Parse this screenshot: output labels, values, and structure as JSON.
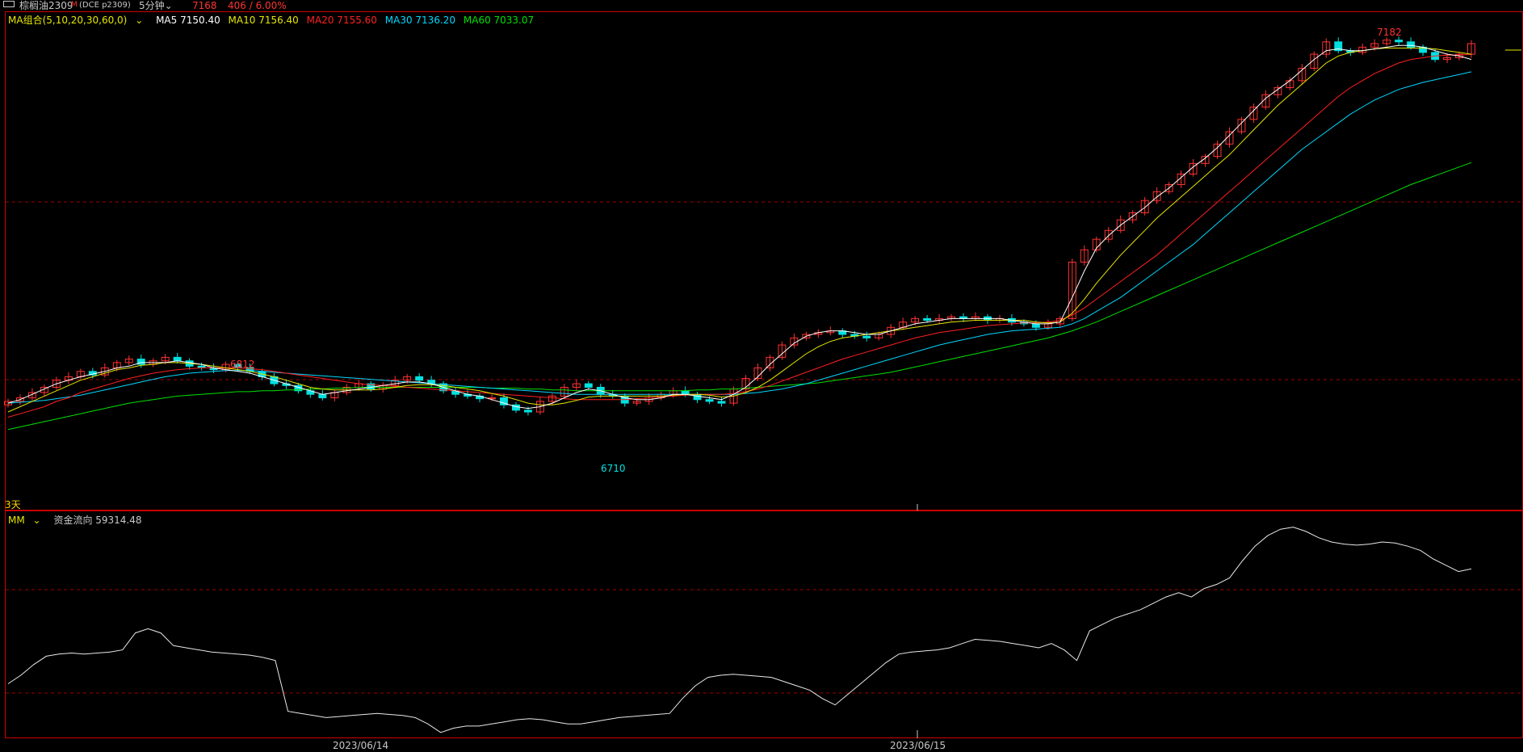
{
  "header": {
    "icon": "window-icon",
    "name": "棕榈油2309",
    "flag": "M",
    "code": "(DCE p2309)",
    "period": "5分钟",
    "price": "7168",
    "change": "406 / 6.00%",
    "colors": {
      "up": "#ff3232",
      "down": "#00e0e0",
      "text": "#c8c8c8"
    }
  },
  "ma_legend": {
    "group": "MA组合(5,10,20,30,60,0)",
    "ma5": "MA5 7150.40",
    "ma10": "MA10 7156.40",
    "ma20": "MA20 7155.60",
    "ma30": "MA30 7136.20",
    "ma60": "MA60 7033.07",
    "colors": {
      "ma5": "#ffffff",
      "ma10": "#e6e600",
      "ma20": "#ff2020",
      "ma30": "#00d8ff",
      "ma60": "#00e000"
    }
  },
  "mm_legend": {
    "name": "MM",
    "label": "资金流向 59314.48"
  },
  "scale_label": "3天",
  "dates": [
    "2023/06/14",
    "2023/06/15"
  ],
  "annotations": {
    "high": "7182",
    "high_mid": "6812",
    "low": "6710"
  },
  "chart_data": [
    {
      "type": "candlestick",
      "title": "棕榈油2309 5分钟",
      "y_range": [
        6640,
        7190
      ],
      "closes": [
        6762,
        6766,
        6772,
        6778,
        6786,
        6790,
        6796,
        6792,
        6800,
        6806,
        6810,
        6804,
        6808,
        6812,
        6808,
        6802,
        6800,
        6798,
        6804,
        6800,
        6796,
        6790,
        6782,
        6780,
        6774,
        6770,
        6766,
        6772,
        6778,
        6782,
        6776,
        6780,
        6786,
        6790,
        6786,
        6782,
        6774,
        6770,
        6768,
        6765,
        6766,
        6758,
        6752,
        6750,
        6762,
        6768,
        6778,
        6782,
        6778,
        6770,
        6768,
        6760,
        6762,
        6766,
        6770,
        6774,
        6770,
        6764,
        6762,
        6760,
        6776,
        6788,
        6800,
        6812,
        6826,
        6834,
        6838,
        6840,
        6842,
        6838,
        6836,
        6834,
        6838,
        6846,
        6852,
        6856,
        6854,
        6856,
        6858,
        6856,
        6858,
        6854,
        6856,
        6852,
        6850,
        6846,
        6850,
        6856,
        6920,
        6934,
        6946,
        6956,
        6968,
        6976,
        6990,
        7000,
        7008,
        7020,
        7032,
        7040,
        7054,
        7068,
        7082,
        7096,
        7110,
        7118,
        7126,
        7140,
        7156,
        7170,
        7160,
        7158,
        7164,
        7168,
        7172,
        7170,
        7164,
        7158,
        7150,
        7152,
        7156,
        7168
      ],
      "ma5": [
        6760,
        6764,
        6770,
        6776,
        6782,
        6786,
        6790,
        6793,
        6796,
        6800,
        6802,
        6806,
        6806,
        6806,
        6808,
        6806,
        6804,
        6800,
        6798,
        6796,
        6794,
        6790,
        6786,
        6782,
        6778,
        6774,
        6770,
        6772,
        6774,
        6776,
        6778,
        6780,
        6782,
        6784,
        6784,
        6782,
        6778,
        6774,
        6770,
        6768,
        6764,
        6760,
        6756,
        6754,
        6756,
        6760,
        6766,
        6772,
        6776,
        6774,
        6770,
        6766,
        6764,
        6764,
        6766,
        6770,
        6770,
        6768,
        6766,
        6764,
        6770,
        6778,
        6790,
        6804,
        6816,
        6828,
        6836,
        6840,
        6842,
        6842,
        6840,
        6838,
        6838,
        6842,
        6846,
        6850,
        6852,
        6854,
        6856,
        6856,
        6856,
        6856,
        6856,
        6854,
        6852,
        6850,
        6850,
        6852,
        6880,
        6910,
        6936,
        6950,
        6962,
        6972,
        6982,
        6994,
        7004,
        7016,
        7028,
        7038,
        7050,
        7064,
        7078,
        7092,
        7106,
        7116,
        7126,
        7138,
        7150,
        7160,
        7162,
        7160,
        7160,
        7162,
        7164,
        7166,
        7166,
        7164,
        7160,
        7156,
        7154,
        7150
      ],
      "ma10": [
        6750,
        6756,
        6762,
        6768,
        6774,
        6780,
        6786,
        6790,
        6794,
        6798,
        6800,
        6803,
        6804,
        6806,
        6806,
        6805,
        6804,
        6802,
        6800,
        6798,
        6796,
        6793,
        6790,
        6786,
        6782,
        6778,
        6776,
        6775,
        6775,
        6775,
        6775,
        6776,
        6778,
        6780,
        6781,
        6781,
        6780,
        6778,
        6776,
        6774,
        6771,
        6768,
        6764,
        6760,
        6758,
        6758,
        6760,
        6763,
        6767,
        6768,
        6768,
        6768,
        6768,
        6768,
        6768,
        6769,
        6770,
        6770,
        6769,
        6767,
        6768,
        6772,
        6778,
        6786,
        6796,
        6806,
        6816,
        6824,
        6830,
        6834,
        6836,
        6838,
        6840,
        6842,
        6844,
        6846,
        6848,
        6850,
        6852,
        6853,
        6854,
        6854,
        6854,
        6854,
        6854,
        6852,
        6851,
        6852,
        6862,
        6878,
        6896,
        6912,
        6928,
        6942,
        6956,
        6970,
        6982,
        6994,
        7006,
        7018,
        7030,
        7042,
        7056,
        7070,
        7084,
        7098,
        7110,
        7122,
        7134,
        7146,
        7154,
        7158,
        7160,
        7162,
        7163,
        7163,
        7163,
        7163,
        7162,
        7160,
        7158,
        7156
      ],
      "ma20": [
        6744,
        6748,
        6752,
        6756,
        6762,
        6766,
        6772,
        6776,
        6780,
        6784,
        6788,
        6791,
        6794,
        6796,
        6798,
        6799,
        6800,
        6800,
        6800,
        6800,
        6799,
        6798,
        6796,
        6794,
        6792,
        6790,
        6788,
        6786,
        6784,
        6782,
        6781,
        6780,
        6779,
        6778,
        6777,
        6776,
        6775,
        6774,
        6773,
        6772,
        6771,
        6770,
        6769,
        6768,
        6767,
        6766,
        6765,
        6764,
        6764,
        6764,
        6764,
        6764,
        6765,
        6766,
        6767,
        6768,
        6769,
        6770,
        6770,
        6770,
        6771,
        6773,
        6776,
        6780,
        6785,
        6790,
        6795,
        6800,
        6805,
        6810,
        6814,
        6818,
        6822,
        6826,
        6830,
        6834,
        6837,
        6840,
        6842,
        6844,
        6846,
        6848,
        6849,
        6850,
        6851,
        6851,
        6852,
        6854,
        6860,
        6868,
        6878,
        6888,
        6898,
        6908,
        6918,
        6928,
        6940,
        6952,
        6964,
        6976,
        6988,
        7000,
        7012,
        7024,
        7036,
        7048,
        7060,
        7072,
        7084,
        7096,
        7108,
        7118,
        7126,
        7134,
        7140,
        7146,
        7150,
        7152,
        7154,
        7155,
        7155,
        7156
      ],
      "ma30": [
        6760,
        6761,
        6762,
        6763,
        6765,
        6767,
        6769,
        6772,
        6775,
        6778,
        6781,
        6784,
        6787,
        6790,
        6792,
        6794,
        6795,
        6796,
        6797,
        6797,
        6797,
        6796,
        6795,
        6794,
        6793,
        6792,
        6791,
        6790,
        6789,
        6788,
        6787,
        6786,
        6785,
        6784,
        6783,
        6782,
        6781,
        6780,
        6779,
        6778,
        6777,
        6776,
        6775,
        6774,
        6773,
        6772,
        6771,
        6770,
        6770,
        6770,
        6770,
        6770,
        6770,
        6770,
        6770,
        6770,
        6770,
        6770,
        6770,
        6770,
        6770,
        6771,
        6772,
        6774,
        6776,
        6779,
        6782,
        6786,
        6790,
        6794,
        6798,
        6802,
        6806,
        6810,
        6814,
        6818,
        6822,
        6826,
        6829,
        6832,
        6835,
        6838,
        6840,
        6842,
        6843,
        6844,
        6845,
        6846,
        6850,
        6856,
        6864,
        6872,
        6880,
        6890,
        6900,
        6910,
        6920,
        6930,
        6940,
        6952,
        6964,
        6976,
        6988,
        7000,
        7012,
        7024,
        7036,
        7048,
        7058,
        7068,
        7078,
        7088,
        7096,
        7104,
        7110,
        7116,
        7120,
        7124,
        7127,
        7130,
        7133,
        7136
      ],
      "ma60": [
        6730,
        6733,
        6736,
        6739,
        6742,
        6745,
        6748,
        6751,
        6754,
        6757,
        6760,
        6762,
        6764,
        6766,
        6768,
        6769,
        6770,
        6771,
        6772,
        6773,
        6773,
        6774,
        6774,
        6775,
        6775,
        6776,
        6776,
        6777,
        6777,
        6778,
        6778,
        6778,
        6778,
        6778,
        6778,
        6778,
        6778,
        6778,
        6778,
        6778,
        6777,
        6777,
        6777,
        6776,
        6776,
        6775,
        6775,
        6774,
        6774,
        6774,
        6774,
        6774,
        6774,
        6774,
        6774,
        6774,
        6774,
        6775,
        6775,
        6776,
        6776,
        6777,
        6778,
        6779,
        6780,
        6781,
        6782,
        6783,
        6785,
        6787,
        6789,
        6791,
        6793,
        6795,
        6798,
        6801,
        6804,
        6807,
        6810,
        6813,
        6816,
        6819,
        6822,
        6825,
        6828,
        6831,
        6834,
        6838,
        6842,
        6847,
        6852,
        6858,
        6864,
        6870,
        6876,
        6882,
        6888,
        6894,
        6900,
        6906,
        6912,
        6918,
        6924,
        6930,
        6936,
        6942,
        6948,
        6954,
        6960,
        6966,
        6972,
        6978,
        6984,
        6990,
        6996,
        7002,
        7008,
        7013,
        7018,
        7023,
        7028,
        7033
      ]
    },
    {
      "type": "line",
      "title": "资金流向",
      "y_range": [
        -20000,
        80000
      ],
      "values": [
        5000,
        9000,
        14000,
        18000,
        19000,
        19500,
        19000,
        19500,
        20000,
        21000,
        29000,
        31000,
        29000,
        23000,
        22000,
        21000,
        20000,
        19500,
        19000,
        18500,
        17500,
        16000,
        -8000,
        -9000,
        -10000,
        -11000,
        -10500,
        -10000,
        -9500,
        -9000,
        -9500,
        -10000,
        -11000,
        -14000,
        -18000,
        -16000,
        -15000,
        -15000,
        -14000,
        -13000,
        -12000,
        -11500,
        -12000,
        -13000,
        -14000,
        -14000,
        -13000,
        -12000,
        -11000,
        -10500,
        -10000,
        -9500,
        -9000,
        -2000,
        4000,
        8000,
        9000,
        9500,
        9000,
        8500,
        8000,
        6000,
        4000,
        2000,
        -2000,
        -5000,
        0,
        5000,
        10000,
        15000,
        19000,
        20000,
        20500,
        21000,
        22000,
        24000,
        26000,
        25500,
        25000,
        24000,
        23000,
        22000,
        24000,
        21000,
        16000,
        30000,
        33000,
        36000,
        38000,
        40000,
        43000,
        46000,
        48000,
        46000,
        50000,
        52000,
        55000,
        63000,
        70000,
        75000,
        78000,
        79000,
        77000,
        74000,
        72000,
        71000,
        70500,
        71000,
        72000,
        71500,
        70000,
        68000,
        64000,
        61000,
        58000,
        59314
      ]
    }
  ]
}
